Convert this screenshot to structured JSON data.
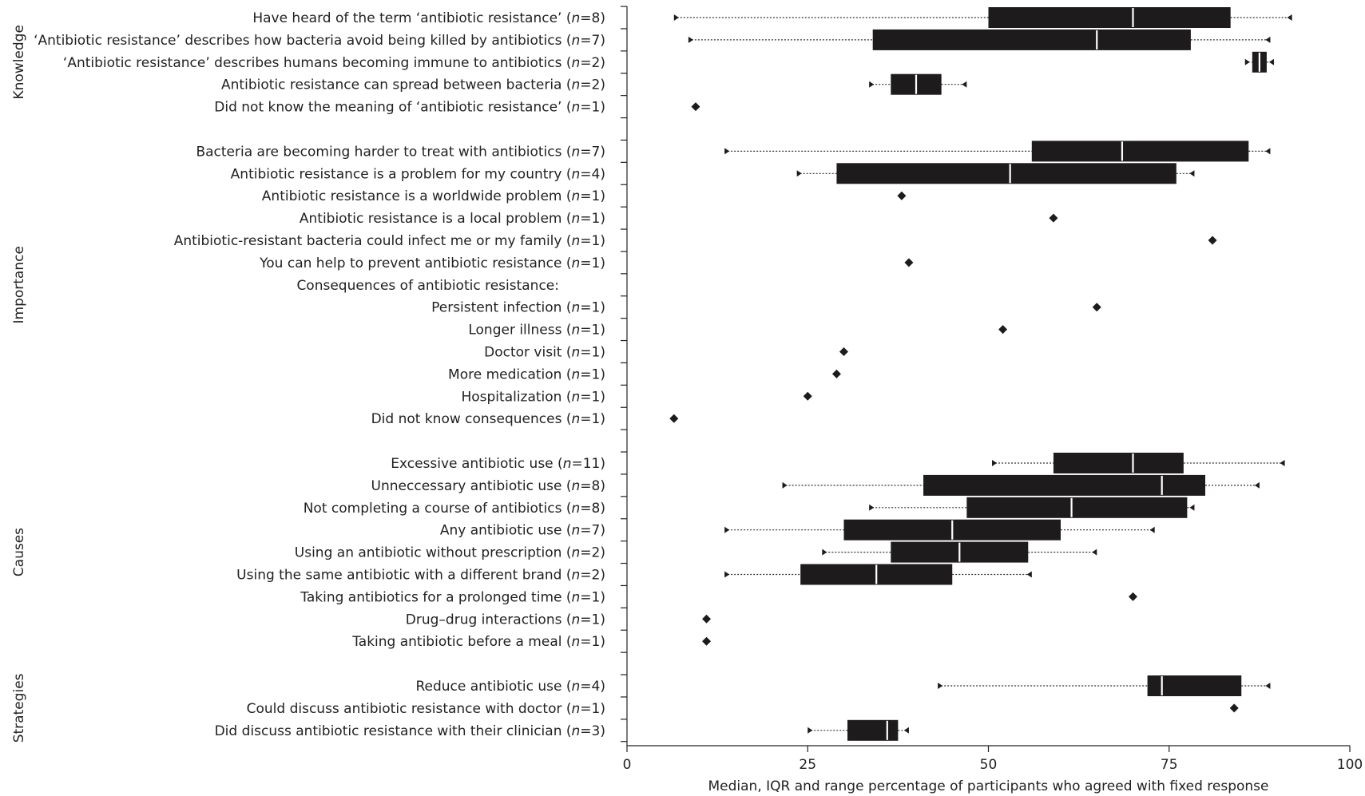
{
  "chart_data": {
    "type": "boxplot",
    "xlabel": "Median, IQR and range percentage of participants who agreed with fixed response",
    "xlim": [
      0,
      100
    ],
    "xticks": [
      "0",
      "25",
      "50",
      "75",
      "100"
    ],
    "groups": [
      {
        "name": "Knowledge",
        "first": 0,
        "last": 4
      },
      {
        "name": "Importance",
        "first": 6,
        "last": 18
      },
      {
        "name": "Causes",
        "first": 20,
        "last": 28
      },
      {
        "name": "Strategies",
        "first": 30,
        "last": 32
      }
    ],
    "rows": [
      {
        "pre": "Have heard of the term ‘antibiotic resistance’ (",
        "n": "8",
        "min": 6.5,
        "q1": 50,
        "med": 70,
        "q3": 83.5,
        "max": 92
      },
      {
        "pre": "‘Antibiotic resistance’ describes how bacteria avoid being killed by antibiotics (",
        "n": "7",
        "min": 8.5,
        "q1": 34,
        "med": 65,
        "q3": 78,
        "max": 89
      },
      {
        "pre": "‘Antibiotic resistance’ describes humans becoming immune to antibiotics (",
        "n": "2",
        "min": 85.5,
        "q1": 86.5,
        "med": 87.5,
        "q3": 88.5,
        "max": 89.5
      },
      {
        "pre": "Antibiotic resistance can spread between bacteria (",
        "n": "2",
        "min": 33.5,
        "q1": 36.5,
        "med": 40,
        "q3": 43.5,
        "max": 47
      },
      {
        "pre": "Did not know the meaning of ‘antibiotic resistance’ (",
        "n": "1",
        "point": 9.5
      },
      {
        "blank": true
      },
      {
        "pre": "Bacteria are becoming harder to treat with antibiotics (",
        "n": "7",
        "min": 13.5,
        "q1": 56,
        "med": 68.5,
        "q3": 86,
        "max": 89
      },
      {
        "pre": "Antibiotic resistance is a problem for my country (",
        "n": "4",
        "min": 23.5,
        "q1": 29,
        "med": 53,
        "q3": 76,
        "max": 78.5
      },
      {
        "pre": "Antibiotic resistance is a worldwide problem (",
        "n": "1",
        "point": 38
      },
      {
        "pre": "Antibiotic resistance is a local problem (",
        "n": "1",
        "point": 59
      },
      {
        "pre": "Antibiotic-resistant bacteria could infect me or my family (",
        "n": "1",
        "point": 81
      },
      {
        "pre": "You can help to prevent antibiotic resistance (",
        "n": "1",
        "point": 39
      },
      {
        "heading": "Consequences of antibiotic resistance:"
      },
      {
        "pre": "Persistent infection (",
        "n": "1",
        "point": 65
      },
      {
        "pre": "Longer illness (",
        "n": "1",
        "point": 52
      },
      {
        "pre": "Doctor visit (",
        "n": "1",
        "point": 30
      },
      {
        "pre": "More medication (",
        "n": "1",
        "point": 29
      },
      {
        "pre": "Hospitalization (",
        "n": "1",
        "point": 25
      },
      {
        "pre": "Did not know consequences (",
        "n": "1",
        "point": 6.5
      },
      {
        "blank": true
      },
      {
        "pre": "Excessive antibiotic use (",
        "n": "11",
        "min": 50.5,
        "q1": 59,
        "med": 70,
        "q3": 77,
        "max": 91
      },
      {
        "pre": "Unneccessary antibiotic use (",
        "n": "8",
        "min": 21.5,
        "q1": 41,
        "med": 74,
        "q3": 80,
        "max": 87.5
      },
      {
        "pre": "Not completing a course of antibiotics (",
        "n": "8",
        "min": 33.5,
        "q1": 47,
        "med": 61.5,
        "q3": 77.5,
        "max": 78.5
      },
      {
        "pre": "Any antibiotic use (",
        "n": "7",
        "min": 13.5,
        "q1": 30,
        "med": 45,
        "q3": 60,
        "max": 73
      },
      {
        "pre": "Using an antibiotic without prescription (",
        "n": "2",
        "min": 27,
        "q1": 36.5,
        "med": 46,
        "q3": 55.5,
        "max": 65
      },
      {
        "pre": "Using the same antibiotic with a different brand (",
        "n": "2",
        "min": 13.5,
        "q1": 24,
        "med": 34.5,
        "q3": 45,
        "max": 56
      },
      {
        "pre": "Taking antibiotics for a prolonged time (",
        "n": "1",
        "point": 70
      },
      {
        "pre": "Drug–drug interactions (",
        "n": "1",
        "point": 11
      },
      {
        "pre": "Taking antibiotic before a meal (",
        "n": "1",
        "point": 11
      },
      {
        "blank": true
      },
      {
        "pre": "Reduce antibiotic use (",
        "n": "4",
        "min": 43,
        "q1": 72,
        "med": 74,
        "q3": 85,
        "max": 89
      },
      {
        "pre": "Could discuss antibiotic resistance with doctor (",
        "n": "1",
        "point": 84
      },
      {
        "pre": "Did discuss antibiotic resistance with their clinician (",
        "n": "3",
        "min": 25,
        "q1": 30.5,
        "med": 36,
        "q3": 37.5,
        "max": 39
      }
    ]
  }
}
